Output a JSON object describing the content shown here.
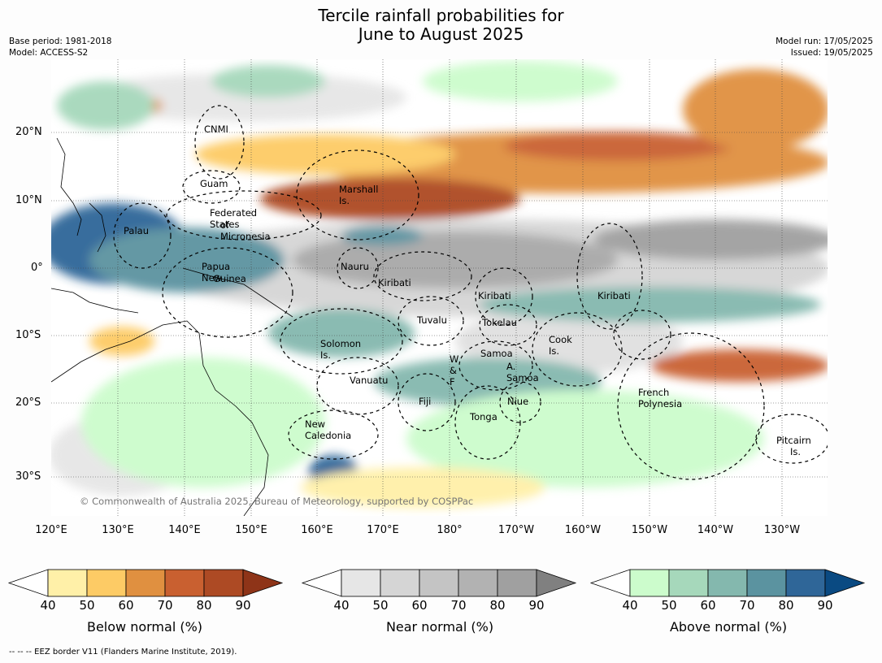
{
  "title_line1": "Tercile rainfall probabilities for",
  "title_line2": "June to August 2025",
  "meta_left": [
    "Base period: 1981-2018",
    "Model: ACCESS-S2"
  ],
  "meta_right": [
    "Model run: 17/05/2025",
    "Issued: 19/05/2025"
  ],
  "lat_labels": [
    "20°N",
    "10°N",
    "0°",
    "10°S",
    "20°S",
    "30°S"
  ],
  "lon_labels": [
    "120°E",
    "130°E",
    "140°E",
    "150°E",
    "160°E",
    "170°E",
    "180°",
    "170°W",
    "160°W",
    "150°W",
    "140°W",
    "130°W"
  ],
  "regions": [
    "CNMI",
    "Guam",
    "Marshall Is.",
    "Federated States",
    "of Micronesia",
    "Palau",
    "Papua New",
    "Guinea",
    "Nauru",
    "Kiribati",
    "Kiribati",
    "Kiribati",
    "Tuvalu",
    "Tokelau",
    "Solomon Is.",
    "Samoa",
    "W & F",
    "A. Samoa",
    "Cook Is.",
    "Vanuatu",
    "Fiji",
    "Niue",
    "Tonga",
    "French Polynesia",
    "New Caledonia",
    "Pitcairn",
    "Is."
  ],
  "copyright": "© Commonwealth of Australia 2025, Bureau of Meteorology, supported by COSPPac",
  "colorbars": [
    {
      "label": "Below normal (%)",
      "colors": [
        "#fff0a8",
        "#fdcb65",
        "#e09040",
        "#c96030",
        "#ad4a24",
        "#8e3418"
      ]
    },
    {
      "label": "Near normal (%)",
      "colors": [
        "#e6e6e6",
        "#d5d5d5",
        "#c4c4c4",
        "#b2b2b2",
        "#a0a0a0",
        "#808080"
      ]
    },
    {
      "label": "Above normal (%)",
      "colors": [
        "#ccfccc",
        "#a6d8bb",
        "#84b8ae",
        "#5b93a0",
        "#2f6698",
        "#0a4a82"
      ]
    }
  ],
  "cbar_ticks": [
    "40",
    "50",
    "60",
    "70",
    "80",
    "90"
  ],
  "footnote": "--  --  -- EEZ border V11 (Flanders Marine Institute, 2019)."
}
